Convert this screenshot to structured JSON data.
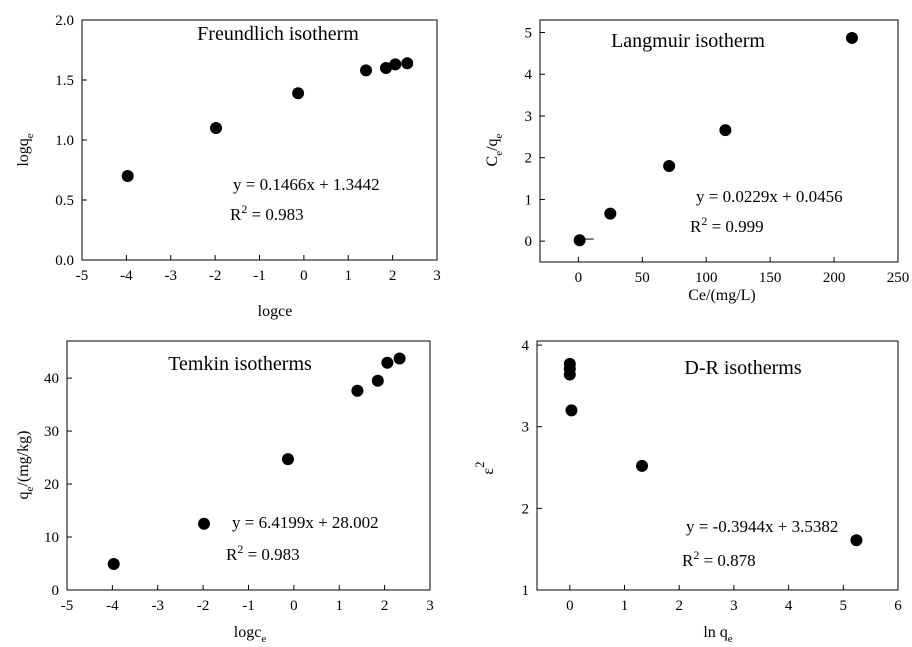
{
  "chart_data": [
    {
      "type": "scatter",
      "title": "Freundlich isotherm",
      "xlabel": "logce",
      "ylabel": "logq",
      "ylabel_sub": "e",
      "xlim": [
        -5,
        3
      ],
      "ylim": [
        0.0,
        2.0
      ],
      "xticks": [
        "-5",
        "-4",
        "-3",
        "-2",
        "-1",
        "0",
        "1",
        "2",
        "3"
      ],
      "yticks": [
        "0.0",
        "0.5",
        "1.0",
        "1.5",
        "2.0"
      ],
      "grid": false,
      "points": [
        {
          "x": -3.97,
          "y": 0.7
        },
        {
          "x": -1.98,
          "y": 1.1
        },
        {
          "x": -0.13,
          "y": 1.39
        },
        {
          "x": 1.4,
          "y": 1.58
        },
        {
          "x": 1.85,
          "y": 1.6
        },
        {
          "x": 2.06,
          "y": 1.63
        },
        {
          "x": 2.33,
          "y": 1.64
        }
      ],
      "equation": "y = 0.1466x + 1.3442",
      "r2_prefix": "R",
      "r2_sup": "2",
      "r2_value": " = 0.983"
    },
    {
      "type": "scatter",
      "title": "Langmuir isotherm",
      "xlabel": "Ce/(mg/L)",
      "ylabel_parts": [
        "C",
        "e",
        "/q",
        "e"
      ],
      "xlim": [
        -30,
        250
      ],
      "ylim": [
        -0.5,
        5.3
      ],
      "xticks": [
        "0",
        "50",
        "100",
        "150",
        "200",
        "250"
      ],
      "yticks": [
        "0",
        "1",
        "2",
        "3",
        "4",
        "5"
      ],
      "grid": false,
      "points": [
        {
          "x": 1.0,
          "y": 0.02
        },
        {
          "x": 25.0,
          "y": 0.66
        },
        {
          "x": 71.0,
          "y": 1.8
        },
        {
          "x": 115.0,
          "y": 2.66
        },
        {
          "x": 214.0,
          "y": 4.87
        }
      ],
      "equation": "y = 0.0229x + 0.0456",
      "r2_prefix": "R",
      "r2_sup": "2",
      "r2_value": " = 0.999"
    },
    {
      "type": "scatter",
      "title": "Temkin isotherms",
      "xlabel": "logc",
      "xlabel_sub": "e",
      "ylabel_parts": [
        "q",
        "e",
        "/(mg/kg)"
      ],
      "xlim": [
        -5,
        3
      ],
      "ylim": [
        0,
        47
      ],
      "xticks": [
        "-5",
        "-4",
        "-3",
        "-2",
        "-1",
        "0",
        "1",
        "2",
        "3"
      ],
      "yticks": [
        "0",
        "10",
        "20",
        "30",
        "40"
      ],
      "grid": false,
      "points": [
        {
          "x": -3.97,
          "y": 4.9
        },
        {
          "x": -1.98,
          "y": 12.5
        },
        {
          "x": -0.13,
          "y": 24.7
        },
        {
          "x": 1.4,
          "y": 37.6
        },
        {
          "x": 1.85,
          "y": 39.5
        },
        {
          "x": 2.06,
          "y": 42.9
        },
        {
          "x": 2.33,
          "y": 43.7
        }
      ],
      "equation": "y = 6.4199x + 28.002",
      "r2_prefix": "R",
      "r2_sup": "2",
      "r2_value": " = 0.983"
    },
    {
      "type": "scatter",
      "title": "D-R isotherms",
      "xlabel": "ln q",
      "xlabel_sub": "e",
      "ylabel": "ε",
      "ylabel_sup": "2",
      "xlim": [
        -0.6,
        6
      ],
      "ylim": [
        1,
        4.05
      ],
      "xticks": [
        "0",
        "1",
        "2",
        "3",
        "4",
        "5",
        "6"
      ],
      "yticks": [
        "1",
        "2",
        "3",
        "4"
      ],
      "grid": false,
      "points": [
        {
          "x": 0.0,
          "y": 3.77
        },
        {
          "x": 0.0,
          "y": 3.71
        },
        {
          "x": 0.0,
          "y": 3.64
        },
        {
          "x": 0.03,
          "y": 3.2
        },
        {
          "x": 1.32,
          "y": 2.52
        },
        {
          "x": 5.24,
          "y": 1.61
        }
      ],
      "equation": "y = -0.3944x + 3.5382",
      "r2_prefix": "R",
      "r2_sup": "2",
      "r2_value": " = 0.878"
    }
  ]
}
